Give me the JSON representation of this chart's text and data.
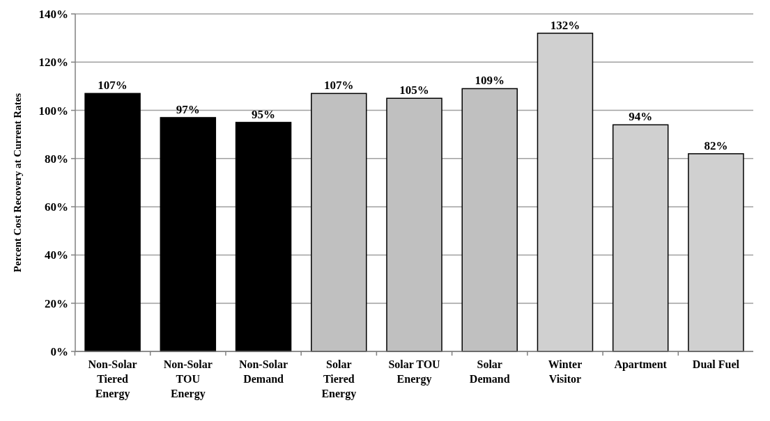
{
  "chart_data": {
    "type": "bar",
    "ylabel": "Percent Cost Recovery at Current Rates",
    "categories": [
      "Non-Solar Tiered Energy",
      "Non-Solar TOU Energy",
      "Non-Solar Demand",
      "Solar Tiered Energy",
      "Solar TOU Energy",
      "Solar Demand",
      "Winter Visitor",
      "Apartment",
      "Dual Fuel"
    ],
    "values": [
      107,
      97,
      95,
      107,
      105,
      109,
      132,
      94,
      82
    ],
    "colors": [
      "#000000",
      "#000000",
      "#000000",
      "#c0c0c0",
      "#c0c0c0",
      "#c0c0c0",
      "#d0d0d0",
      "#d0d0d0",
      "#d0d0d0"
    ],
    "value_labels": [
      "107%",
      "97%",
      "95%",
      "107%",
      "105%",
      "109%",
      "132%",
      "94%",
      "82%"
    ],
    "ylim": [
      0,
      140
    ],
    "yticks": [
      {
        "value": 0,
        "label": "0%"
      },
      {
        "value": 20,
        "label": "20%"
      },
      {
        "value": 40,
        "label": "40%"
      },
      {
        "value": 60,
        "label": "60%"
      },
      {
        "value": 80,
        "label": "80%"
      },
      {
        "value": 100,
        "label": "100%"
      },
      {
        "value": 120,
        "label": "120%"
      },
      {
        "value": 140,
        "label": "140%"
      }
    ],
    "grid": "y"
  }
}
